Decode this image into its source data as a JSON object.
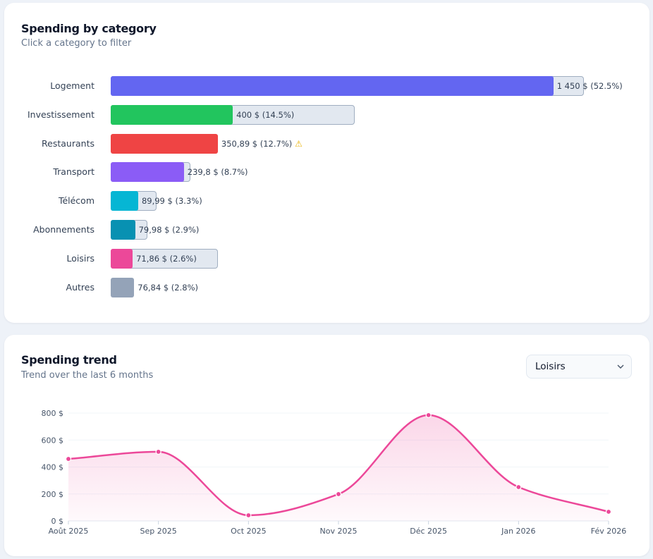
{
  "category_card": {
    "title": "Spending by category",
    "subtitle": "Click a category to filter"
  },
  "trend_card": {
    "title": "Spending trend",
    "subtitle": "Trend over the last 6 months",
    "category_select": {
      "value": "Loisirs",
      "icon": "chevron-down-icon"
    }
  },
  "chart_data": [
    {
      "type": "bar",
      "orientation": "horizontal",
      "categories": [
        "Logement",
        "Investissement",
        "Restaurants",
        "Transport",
        "Télécom",
        "Abonnements",
        "Loisirs",
        "Autres"
      ],
      "values": [
        1450,
        400,
        350.89,
        239.8,
        89.99,
        79.98,
        71.86,
        76.84
      ],
      "budgets": [
        1550,
        800,
        null,
        260,
        150,
        120,
        350,
        null
      ],
      "data_labels": [
        "1 450 $ (52.5%)",
        "400 $ (14.5%)",
        "350,89 $ (12.7%)",
        "239,8 $ (8.7%)",
        "89,99 $ (3.3%)",
        "79,98 $ (2.9%)",
        "71,86 $ (2.6%)",
        "76,84 $ (2.8%)"
      ],
      "warnings": [
        false,
        false,
        true,
        false,
        false,
        false,
        false,
        false
      ],
      "warning_icon": "warning-icon",
      "colors": [
        "#6366f1",
        "#22c55e",
        "#ef4444",
        "#8b5cf6",
        "#06b6d4",
        "#0891b2",
        "#ec4899",
        "#94a3b8"
      ],
      "budget_color": "#e2e8f0"
    },
    {
      "type": "area",
      "x": [
        "Août 2025",
        "Sep 2025",
        "Oct 2025",
        "Nov 2025",
        "Déc 2025",
        "Jan 2026",
        "Fév 2026"
      ],
      "values": [
        460,
        513,
        42,
        199,
        785,
        251,
        68
      ],
      "yticks": [
        "0 $",
        "200 $",
        "400 $",
        "600 $",
        "800 $"
      ],
      "ytick_values": [
        0,
        200,
        400,
        600,
        800
      ],
      "ylim": [
        0,
        800
      ],
      "grid": true,
      "smooth": true,
      "color": "#ec4899"
    }
  ]
}
